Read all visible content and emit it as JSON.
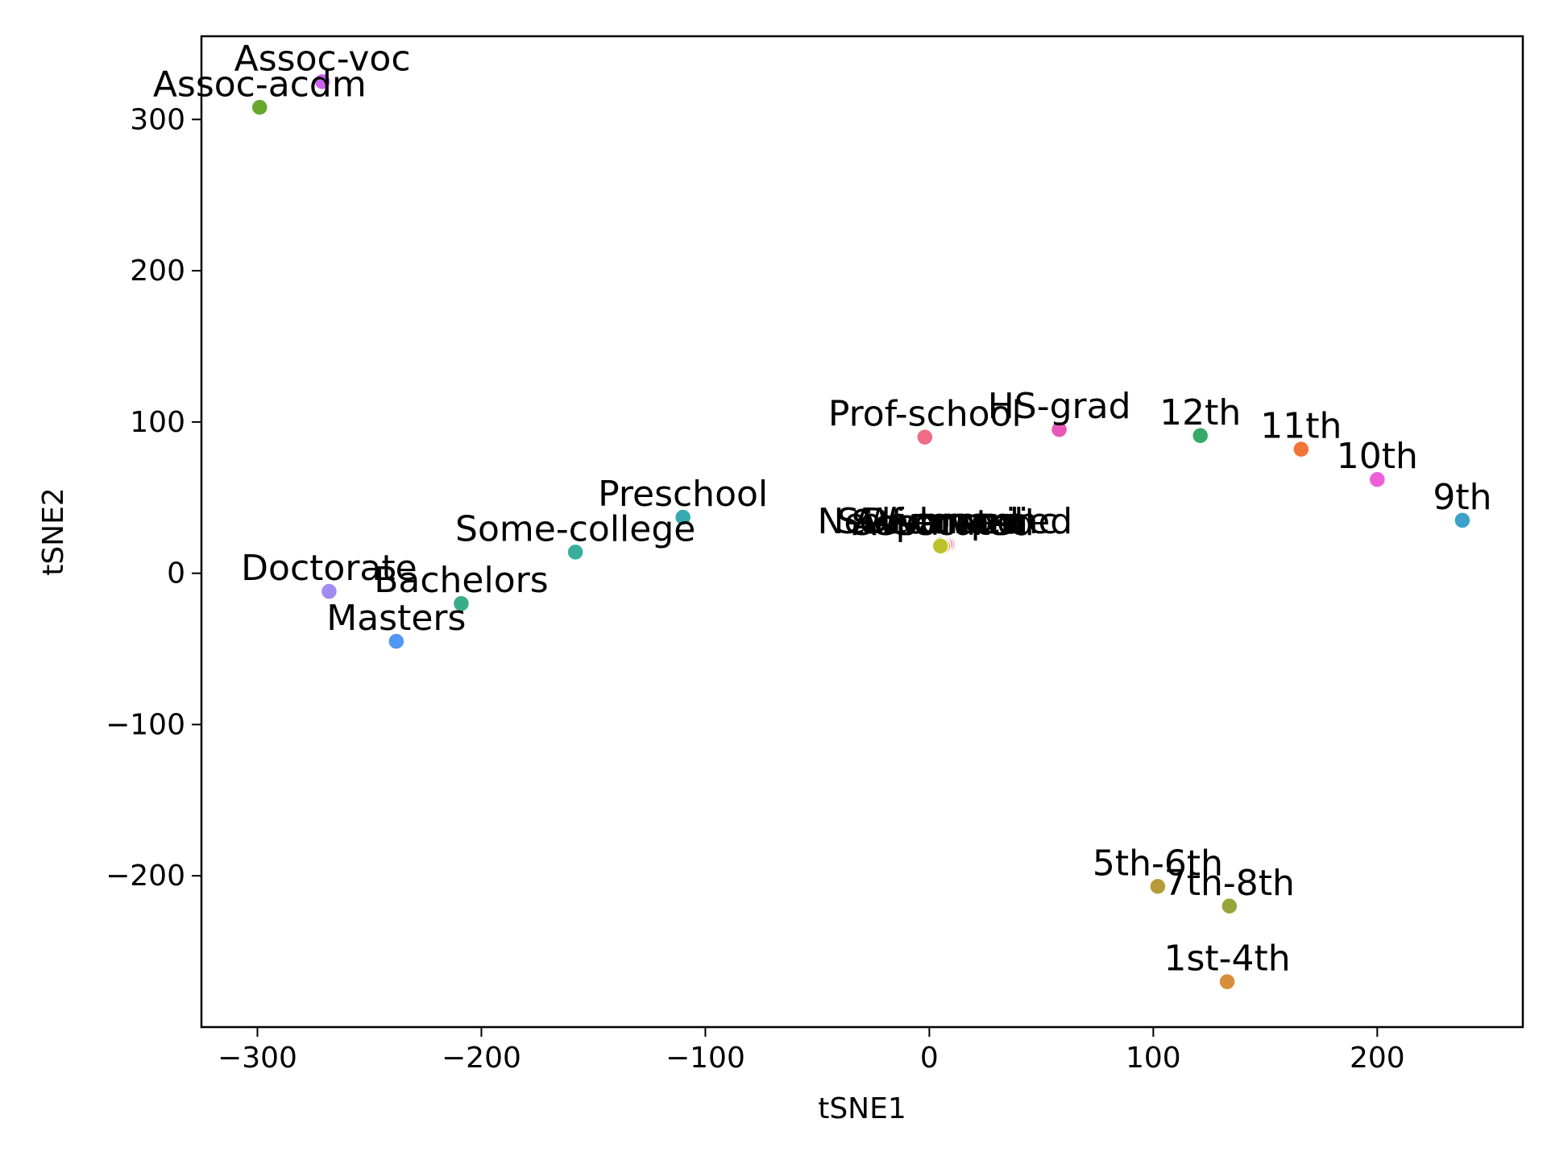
{
  "chart_data": {
    "type": "scatter",
    "title": "",
    "xlabel": "tSNE1",
    "ylabel": "tSNE2",
    "xlim": [
      -325,
      265
    ],
    "ylim": [
      -300,
      355
    ],
    "xticks": [
      -300,
      -200,
      -100,
      0,
      100,
      200
    ],
    "yticks": [
      -200,
      -100,
      0,
      100,
      200,
      300
    ],
    "grid": false,
    "points": [
      {
        "label": "Assoc-voc",
        "x": -271,
        "y": 325,
        "color": "#cc62f0"
      },
      {
        "label": "Assoc-acdm",
        "x": -299,
        "y": 308,
        "color": "#68a82e"
      },
      {
        "label": "Prof-school",
        "x": -2,
        "y": 90,
        "color": "#f06b84"
      },
      {
        "label": "HS-grad",
        "x": 58,
        "y": 95,
        "color": "#e958b8"
      },
      {
        "label": "12th",
        "x": 121,
        "y": 91,
        "color": "#36a869"
      },
      {
        "label": "11th",
        "x": 166,
        "y": 82,
        "color": "#f27638"
      },
      {
        "label": "10th",
        "x": 200,
        "y": 62,
        "color": "#ef5fdb"
      },
      {
        "label": "9th",
        "x": 238,
        "y": 35,
        "color": "#3aa2cb"
      },
      {
        "label": "Preschool",
        "x": -110,
        "y": 37,
        "color": "#35aab0"
      },
      {
        "label": "Some-college",
        "x": -158,
        "y": 14,
        "color": "#38ae9c"
      },
      {
        "label": "Doctorate",
        "x": -268,
        "y": -12,
        "color": "#a28bf0"
      },
      {
        "label": "Bachelors",
        "x": -209,
        "y": -20,
        "color": "#38ae88"
      },
      {
        "label": "Masters",
        "x": -238,
        "y": -45,
        "color": "#5196f2"
      },
      {
        "label": "Self-emp-inc",
        "x": 8,
        "y": 19,
        "color": "#f6a3c7"
      },
      {
        "label": "Never-married",
        "x": 7,
        "y": 19,
        "color": "#e66aa0"
      },
      {
        "label": "Widowed",
        "x": 6,
        "y": 19,
        "color": "#b07cf0"
      },
      {
        "label": "Divorced",
        "x": 5,
        "y": 19,
        "color": "#5aa0e8"
      },
      {
        "label": "Separated",
        "x": 6,
        "y": 18,
        "color": "#e0a24c"
      },
      {
        "label": "Assoc-voc",
        "x": 5,
        "y": 18,
        "color": "#bcc22a"
      },
      {
        "label": "5th-6th",
        "x": 102,
        "y": -207,
        "color": "#b59b3a"
      },
      {
        "label": "7th-8th",
        "x": 134,
        "y": -220,
        "color": "#96a63a"
      },
      {
        "label": "1st-4th",
        "x": 133,
        "y": -270,
        "color": "#d88f3c"
      }
    ]
  }
}
